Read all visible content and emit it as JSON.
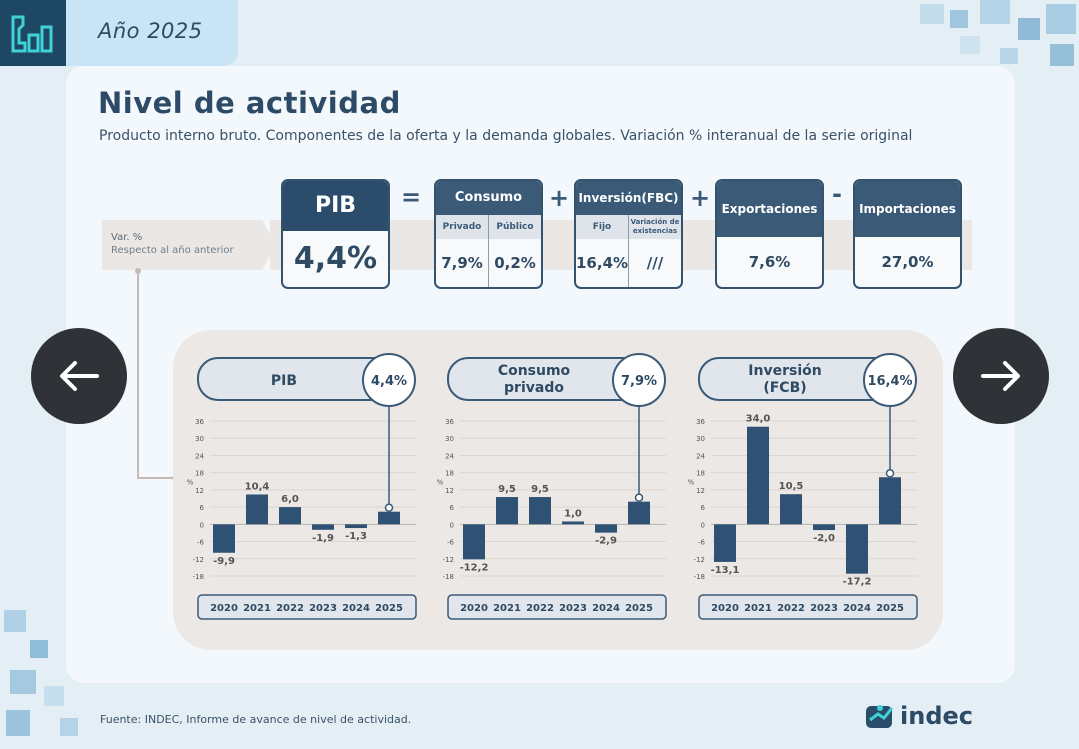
{
  "header": {
    "year_title": "Año 2025"
  },
  "title": "Nivel de actividad",
  "subtitle": "Producto interno bruto. Componentes de la oferta y la demanda globales. Variación % interanual de la serie original",
  "var_label": {
    "line1": "Var. %",
    "line2": "Respecto al año anterior"
  },
  "equation": {
    "pib": {
      "label": "PIB",
      "value": "4,4%"
    },
    "eq": "=",
    "plus1": "+",
    "plus2": "+",
    "minus": "-",
    "consumo": {
      "label": "Consumo",
      "sub": [
        "Privado",
        "Público"
      ],
      "values": [
        "7,9%",
        "0,2%"
      ]
    },
    "inversion": {
      "label": "Inversión(FBC)",
      "sub": [
        "Fijo",
        "Variación de existencias"
      ],
      "values": [
        "16,4%",
        "///"
      ]
    },
    "exportaciones": {
      "label": "Exportaciones",
      "value": "7,6%"
    },
    "importaciones": {
      "label": "Importaciones",
      "value": "27,0%"
    }
  },
  "chart_data": [
    {
      "type": "bar",
      "title": "PIB",
      "badge": "4,4%",
      "categories": [
        "2020",
        "2021",
        "2022",
        "2023",
        "2024",
        "2025"
      ],
      "values": [
        -9.9,
        10.4,
        6.0,
        -1.9,
        -1.3,
        4.4
      ],
      "labels": [
        "-9,9",
        "10,4",
        "6,0",
        "-1,9",
        "-1,3",
        ""
      ],
      "ylabel": "%",
      "ylim": [
        -18,
        36
      ],
      "yticks": [
        36,
        30,
        24,
        18,
        12,
        6,
        0,
        -6,
        -12,
        -18
      ]
    },
    {
      "type": "bar",
      "title": "Consumo privado",
      "title_lines": [
        "Consumo",
        "privado"
      ],
      "badge": "7,9%",
      "categories": [
        "2020",
        "2021",
        "2022",
        "2023",
        "2024",
        "2025"
      ],
      "values": [
        -12.2,
        9.5,
        9.5,
        1.0,
        -2.9,
        7.9
      ],
      "labels": [
        "-12,2",
        "9,5",
        "9,5",
        "1,0",
        "-2,9",
        ""
      ],
      "ylabel": "%",
      "ylim": [
        -18,
        36
      ],
      "yticks": [
        36,
        30,
        24,
        18,
        12,
        6,
        0,
        -6,
        -12,
        -18
      ]
    },
    {
      "type": "bar",
      "title": "Inversión (FCB)",
      "title_lines": [
        "Inversión",
        "(FCB)"
      ],
      "badge": "16,4%",
      "categories": [
        "2020",
        "2021",
        "2022",
        "2023",
        "2024",
        "2025"
      ],
      "values": [
        -13.1,
        34.0,
        10.5,
        -2.0,
        -17.2,
        16.4
      ],
      "labels": [
        "-13,1",
        "34,0",
        "10,5",
        "-2,0",
        "-17,2",
        ""
      ],
      "ylabel": "%",
      "ylim": [
        -18,
        36
      ],
      "yticks": [
        36,
        30,
        24,
        18,
        12,
        6,
        0,
        -6,
        -12,
        -18
      ]
    }
  ],
  "footer": {
    "source": "Fuente: INDEC, Informe de avance de nivel de actividad."
  },
  "brand": {
    "name": "indec"
  },
  "colors": {
    "bar": "#2f5274",
    "header": "#3b5a78",
    "dark": "#2b4c6b"
  }
}
